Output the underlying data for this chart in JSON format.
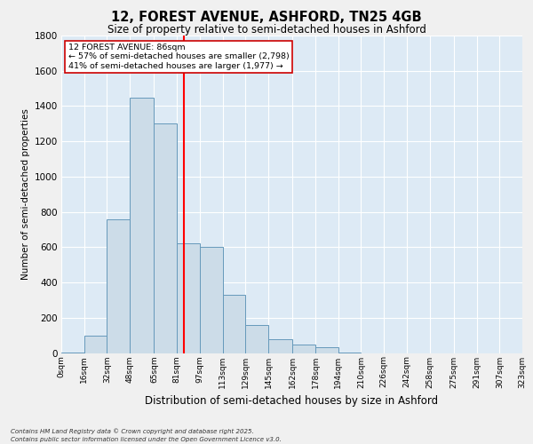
{
  "title_line1": "12, FOREST AVENUE, ASHFORD, TN25 4GB",
  "title_line2": "Size of property relative to semi-detached houses in Ashford",
  "xlabel": "Distribution of semi-detached houses by size in Ashford",
  "ylabel": "Number of semi-detached properties",
  "annotation_title": "12 FOREST AVENUE: 86sqm",
  "annotation_line2": "← 57% of semi-detached houses are smaller (2,798)",
  "annotation_line3": "41% of semi-detached houses are larger (1,977) →",
  "footer_line1": "Contains HM Land Registry data © Crown copyright and database right 2025.",
  "footer_line2": "Contains public sector information licensed under the Open Government Licence v3.0.",
  "property_size": 86,
  "bin_edges": [
    0,
    16,
    32,
    48,
    65,
    81,
    97,
    113,
    129,
    145,
    162,
    178,
    194,
    210,
    226,
    242,
    258,
    275,
    291,
    307,
    323
  ],
  "bin_labels": [
    "0sqm",
    "16sqm",
    "32sqm",
    "48sqm",
    "65sqm",
    "81sqm",
    "97sqm",
    "113sqm",
    "129sqm",
    "145sqm",
    "162sqm",
    "178sqm",
    "194sqm",
    "210sqm",
    "226sqm",
    "242sqm",
    "258sqm",
    "275sqm",
    "291sqm",
    "307sqm",
    "323sqm"
  ],
  "bar_heights": [
    5,
    100,
    760,
    1450,
    1300,
    620,
    600,
    330,
    160,
    80,
    50,
    35,
    5,
    0,
    0,
    0,
    0,
    0,
    0,
    0
  ],
  "bar_color": "#ccdce8",
  "bar_edge_color": "#6699bb",
  "red_line_x": 86,
  "ylim": [
    0,
    1800
  ],
  "yticks": [
    0,
    200,
    400,
    600,
    800,
    1000,
    1200,
    1400,
    1600,
    1800
  ],
  "plot_bg_color": "#ddeaf5",
  "grid_color": "#ffffff",
  "fig_bg_color": "#f0f0f0"
}
